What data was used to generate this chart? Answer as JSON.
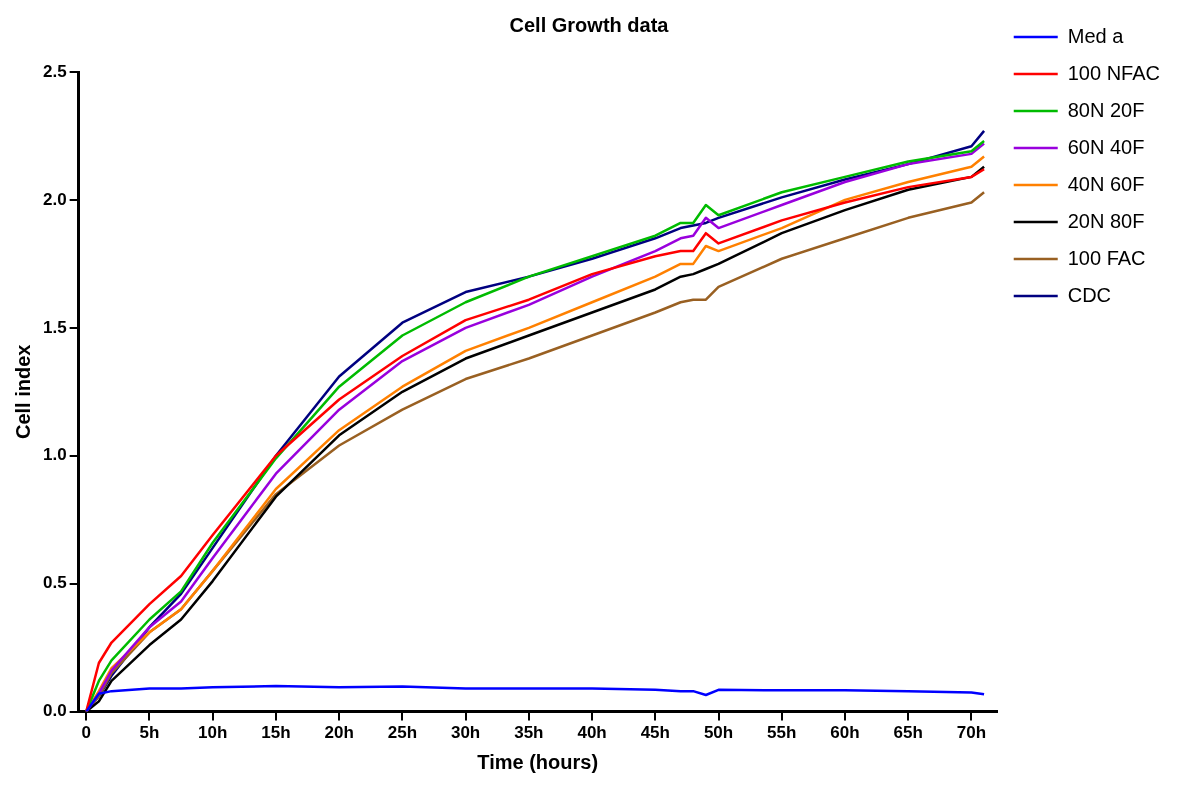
{
  "chart_data": {
    "type": "line",
    "title": "Cell Growth data",
    "xlabel": "Time (hours)",
    "ylabel": "Cell index",
    "x": [
      0,
      1,
      2,
      5,
      7.5,
      10,
      15,
      20,
      25,
      30,
      35,
      40,
      45,
      47,
      48,
      49,
      50,
      55,
      60,
      65,
      70,
      71
    ],
    "series": [
      {
        "name": "Med a",
        "color": "#0000ff",
        "values": [
          0,
          0.07,
          0.08,
          0.09,
          0.09,
          0.095,
          0.1,
          0.095,
          0.098,
          0.09,
          0.09,
          0.09,
          0.085,
          0.08,
          0.08,
          0.065,
          0.085,
          0.083,
          0.083,
          0.08,
          0.075,
          0.068
        ]
      },
      {
        "name": "100 NFAC",
        "color": "#ff0000",
        "values": [
          0,
          0.19,
          0.27,
          0.42,
          0.53,
          0.69,
          1.0,
          1.22,
          1.39,
          1.53,
          1.61,
          1.71,
          1.78,
          1.8,
          1.8,
          1.87,
          1.83,
          1.92,
          1.99,
          2.05,
          2.09,
          2.12
        ]
      },
      {
        "name": "80N 20F",
        "color": "#00bb00",
        "values": [
          0,
          0.12,
          0.2,
          0.36,
          0.47,
          0.66,
          0.99,
          1.27,
          1.47,
          1.6,
          1.7,
          1.78,
          1.86,
          1.91,
          1.91,
          1.98,
          1.94,
          2.03,
          2.09,
          2.15,
          2.19,
          2.23
        ]
      },
      {
        "name": "60N 40F",
        "color": "#9900dd",
        "values": [
          0,
          0.07,
          0.16,
          0.33,
          0.43,
          0.6,
          0.93,
          1.18,
          1.37,
          1.5,
          1.59,
          1.7,
          1.8,
          1.85,
          1.86,
          1.93,
          1.89,
          1.98,
          2.07,
          2.14,
          2.18,
          2.22
        ]
      },
      {
        "name": "40N 60F",
        "color": "#ff8000",
        "values": [
          0,
          0.08,
          0.17,
          0.31,
          0.4,
          0.55,
          0.87,
          1.1,
          1.27,
          1.41,
          1.5,
          1.6,
          1.7,
          1.75,
          1.75,
          1.82,
          1.8,
          1.89,
          2.0,
          2.07,
          2.13,
          2.17
        ]
      },
      {
        "name": "20N 80F",
        "color": "#000000",
        "values": [
          0,
          0.04,
          0.12,
          0.26,
          0.36,
          0.51,
          0.84,
          1.08,
          1.25,
          1.38,
          1.47,
          1.56,
          1.65,
          1.7,
          1.71,
          1.73,
          1.75,
          1.87,
          1.96,
          2.04,
          2.09,
          2.13
        ]
      },
      {
        "name": "100 FAC",
        "color": "#996022",
        "values": [
          0,
          0.06,
          0.15,
          0.31,
          0.4,
          0.55,
          0.85,
          1.04,
          1.18,
          1.3,
          1.38,
          1.47,
          1.56,
          1.6,
          1.61,
          1.61,
          1.66,
          1.77,
          1.85,
          1.93,
          1.99,
          2.03
        ]
      },
      {
        "name": "CDC",
        "color": "#000080",
        "values": [
          0,
          0.06,
          0.14,
          0.33,
          0.46,
          0.64,
          1.0,
          1.31,
          1.52,
          1.64,
          1.7,
          1.77,
          1.85,
          1.89,
          1.9,
          1.91,
          1.93,
          2.01,
          2.08,
          2.14,
          2.21,
          2.27
        ]
      }
    ],
    "xlim": [
      -0.6,
      72
    ],
    "xticks": [
      0,
      {
        "value": 5,
        "label": "5h"
      },
      {
        "value": 10,
        "label": "10h"
      },
      {
        "value": 15,
        "label": "15h"
      },
      {
        "value": 20,
        "label": "20h"
      },
      {
        "value": 25,
        "label": "25h"
      },
      {
        "value": 30,
        "label": "30h"
      },
      {
        "value": 35,
        "label": "35h"
      },
      {
        "value": 40,
        "label": "40h"
      },
      {
        "value": 45,
        "label": "45h"
      },
      {
        "value": 50,
        "label": "50h"
      },
      {
        "value": 55,
        "label": "55h"
      },
      {
        "value": 60,
        "label": "60h"
      },
      {
        "value": 65,
        "label": "65h"
      },
      {
        "value": 70,
        "label": "70h"
      }
    ],
    "ylim": [
      0,
      2.5
    ],
    "yticks": [
      {
        "value": 0,
        "label": "0.0"
      },
      {
        "value": 0.5,
        "label": "0.5"
      },
      {
        "value": 1,
        "label": "1.0"
      },
      {
        "value": 1.5,
        "label": "1.5"
      },
      {
        "value": 2,
        "label": "2.0"
      },
      {
        "value": 2.5,
        "label": "2.5"
      }
    ],
    "grid": false,
    "legend": "top right",
    "marker": "none",
    "line_style": "solid"
  }
}
